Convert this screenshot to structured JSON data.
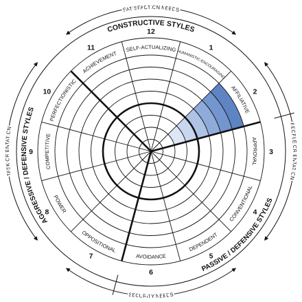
{
  "satisfaction_needs": "SATISFACTION NEEDS",
  "security_needs": "SECURITY NEEDS",
  "people_orientation": "PEOPLE ORIENTATION",
  "task_orientation": "TASK ORIENTATION",
  "constructive_styles": "CONSTRUCTIVE STYLES",
  "aggressive_defensive_styles": "AGGRESSIVE / DEFENSIVE STYLES",
  "passive_defensive_styles": "PASSIVE / DEFENSIVE STYLES",
  "segments": [
    {
      "number": 1,
      "label": "HUMANISTIC-ENCOURAGING"
    },
    {
      "number": 2,
      "label": "AFFILIATIVE"
    },
    {
      "number": 3,
      "label": "APPROVAL"
    },
    {
      "number": 4,
      "label": "CONVENTIONAL"
    },
    {
      "number": 5,
      "label": "DEPENDENT"
    },
    {
      "number": 6,
      "label": "AVOIDANCE"
    },
    {
      "number": 7,
      "label": "OPPOSITIONAL"
    },
    {
      "number": 8,
      "label": "POWER"
    },
    {
      "number": 9,
      "label": "COMPETITIVE"
    },
    {
      "number": 10,
      "label": "PERFECTIONISTIC"
    },
    {
      "number": 11,
      "label": "ACHIEVEMENT"
    },
    {
      "number": 12,
      "label": "SELF-ACTUALIZING"
    }
  ]
}
